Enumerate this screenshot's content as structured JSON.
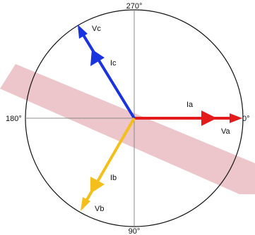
{
  "angles": {
    "top": "270°",
    "left": "180°",
    "right": "0°",
    "bottom": "90°"
  },
  "phasors": [
    {
      "id": "va",
      "voltage_label": "Va",
      "current_label": "Ia",
      "color": "#e31b1b"
    },
    {
      "id": "vb",
      "voltage_label": "Vb",
      "current_label": "Ib",
      "color": "#f5bf1b"
    },
    {
      "id": "vc",
      "voltage_label": "Vc",
      "current_label": "Ic",
      "color": "#1a33e0"
    }
  ],
  "watermark": {
    "color": "#e6b3b8"
  }
}
